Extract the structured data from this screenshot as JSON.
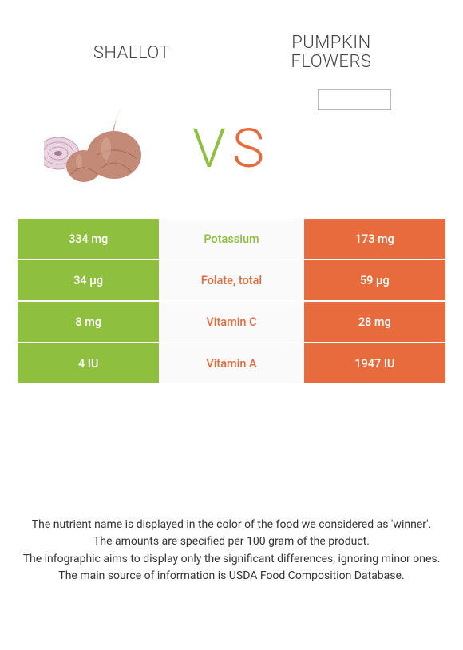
{
  "colors": {
    "left": "#8fbf3f",
    "right": "#e76b3c",
    "mid_bg": "#fafafa",
    "page_bg": "#ffffff",
    "text": "#333333"
  },
  "titles": {
    "left": "SHALLOT",
    "right_line1": "PUMPKIN",
    "right_line2": "FLOWERS"
  },
  "vs": {
    "v": "V",
    "s": "S"
  },
  "rows": [
    {
      "left": "334 mg",
      "label": "Potassium",
      "right": "173 mg",
      "winner": "left"
    },
    {
      "left": "34 µg",
      "label": "Folate, total",
      "right": "59 µg",
      "winner": "right"
    },
    {
      "left": "8 mg",
      "label": "Vitamin C",
      "right": "28 mg",
      "winner": "right"
    },
    {
      "left": "4 IU",
      "label": "Vitamin A",
      "right": "1947 IU",
      "winner": "right"
    }
  ],
  "footnotes": [
    "The nutrient name is displayed in the color of the food we considered as 'winner'.",
    "The amounts are specified per 100 gram of the product.",
    "The infographic aims to display only the significant differences, ignoring minor ones.",
    "The main source of information is USDA Food Composition Database."
  ]
}
